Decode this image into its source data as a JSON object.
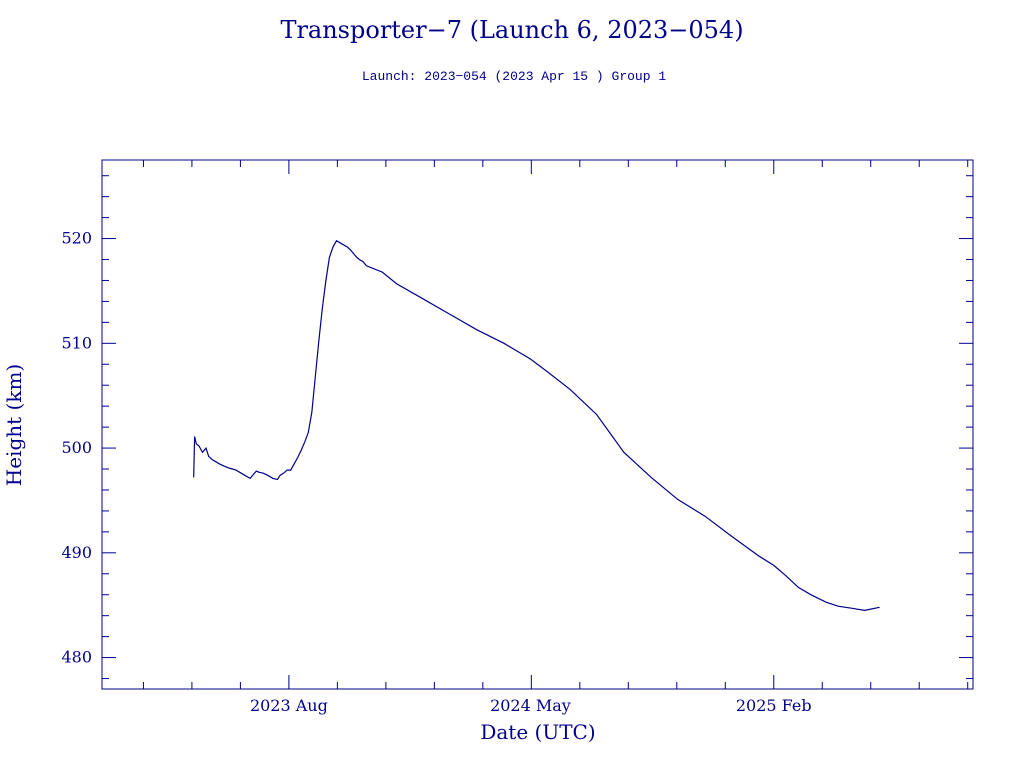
{
  "chart_data": {
    "type": "line",
    "title": "Transporter−7 (Launch 6, 2023−054)",
    "subtitle": "Launch: 2023−054  (2023 Apr 15 )  Group 1",
    "xlabel": "Date (UTC)",
    "ylabel": "Height (km)",
    "x_tick_labels": [
      "2023 Aug",
      "2024 May",
      "2025 Feb"
    ],
    "x_tick_dates": [
      "2023-08-01",
      "2024-05-01",
      "2025-02-01"
    ],
    "y_tick_labels": [
      "480",
      "490",
      "500",
      "510",
      "520"
    ],
    "y_ticks": [
      480,
      490,
      500,
      510,
      520
    ],
    "xlim": [
      "2023-01-01",
      "2025-09-15"
    ],
    "ylim": [
      477,
      527.5
    ],
    "grid": false,
    "line_color": "#00008b",
    "series": [
      {
        "x": [
          "2023-04-15",
          "2023-04-16",
          "2023-04-18",
          "2023-04-21",
          "2023-04-25",
          "2023-04-29",
          "2023-05-02",
          "2023-05-06",
          "2023-05-10",
          "2023-05-14",
          "2023-05-19",
          "2023-05-25",
          "2023-06-02",
          "2023-06-10",
          "2023-06-18",
          "2023-06-25",
          "2023-06-28",
          "2023-07-03",
          "2023-07-08",
          "2023-07-14",
          "2023-07-19",
          "2023-07-22",
          "2023-07-26",
          "2023-07-30",
          "2023-08-03",
          "2023-08-07",
          "2023-08-11",
          "2023-08-15",
          "2023-08-19",
          "2023-08-23",
          "2023-08-27",
          "2023-08-31",
          "2023-09-04",
          "2023-09-08",
          "2023-09-12",
          "2023-09-16",
          "2023-09-20",
          "2023-09-24",
          "2023-09-28",
          "2023-10-02",
          "2023-10-06",
          "2023-10-10",
          "2023-10-14",
          "2023-10-17",
          "2023-10-20",
          "2023-10-24",
          "2023-10-28",
          "2023-11-15",
          "2023-12-01",
          "2024-01-01",
          "2024-02-01",
          "2024-03-01",
          "2024-04-01",
          "2024-05-01",
          "2024-05-20",
          "2024-06-15",
          "2024-07-15",
          "2024-08-15",
          "2024-09-15",
          "2024-10-15",
          "2024-11-15",
          "2024-12-15",
          "2025-01-15",
          "2025-02-01",
          "2025-02-15",
          "2025-03-01",
          "2025-03-15",
          "2025-04-01",
          "2025-04-15",
          "2025-05-01",
          "2025-05-15",
          "2025-06-01"
        ],
        "values": [
          497.2,
          501.1,
          500.4,
          500.2,
          499.6,
          500.0,
          499.2,
          498.9,
          498.7,
          498.5,
          498.3,
          498.1,
          497.9,
          497.5,
          497.1,
          497.8,
          497.7,
          497.6,
          497.4,
          497.1,
          497.0,
          497.4,
          497.6,
          497.9,
          497.9,
          498.5,
          499.1,
          499.8,
          500.6,
          501.5,
          503.4,
          506.8,
          510.3,
          513.4,
          516.0,
          518.2,
          519.2,
          519.8,
          519.6,
          519.4,
          519.2,
          518.9,
          518.5,
          518.2,
          518.0,
          517.8,
          517.4,
          516.8,
          515.7,
          514.2,
          512.7,
          511.3,
          510.0,
          508.5,
          507.3,
          505.6,
          503.2,
          499.6,
          497.2,
          495.1,
          493.5,
          491.6,
          489.7,
          488.8,
          487.8,
          486.7,
          486.0,
          485.3,
          484.9,
          484.7,
          484.5,
          484.8
        ]
      }
    ]
  }
}
